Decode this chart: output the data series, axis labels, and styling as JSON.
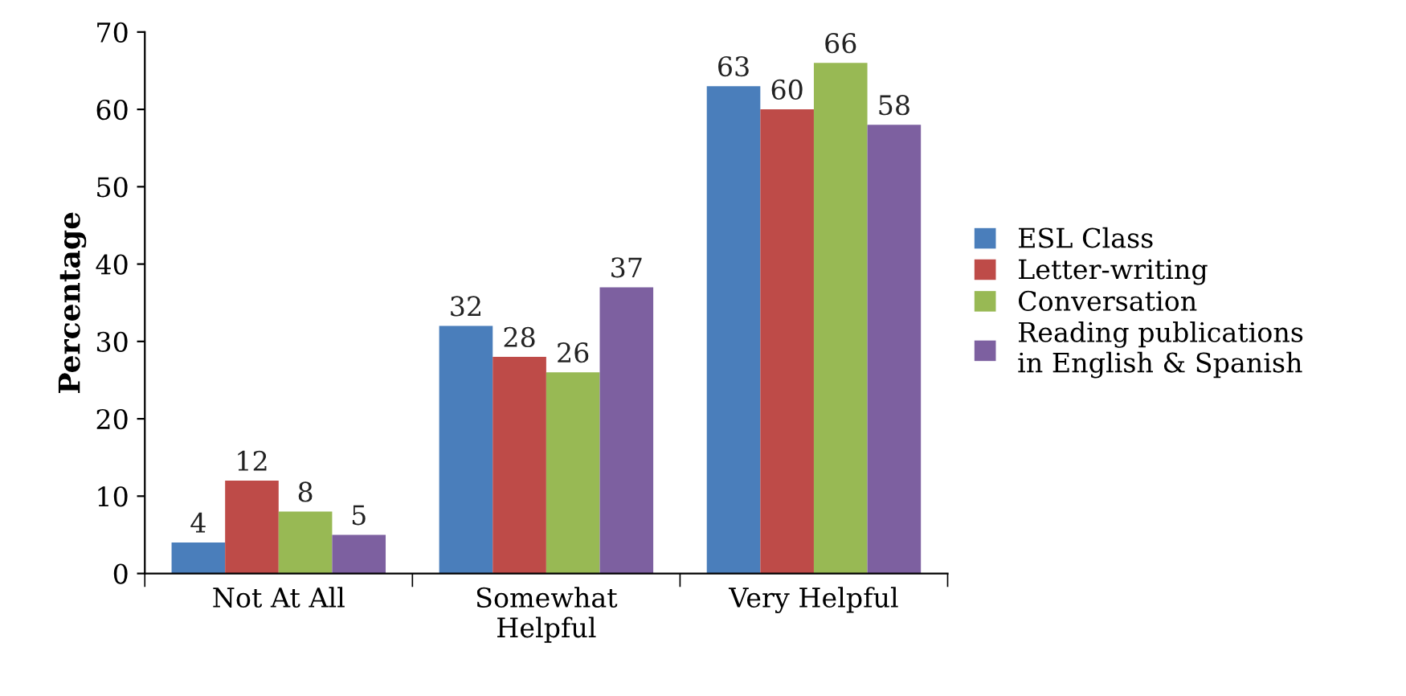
{
  "chart_data": {
    "type": "bar",
    "ylabel": "Percentage",
    "categories": [
      "Not At All",
      "Somewhat\nHelpful",
      "Very Helpful"
    ],
    "series": [
      {
        "name": "ESL Class",
        "color": "#4a7ebb",
        "values": [
          4,
          32,
          63
        ]
      },
      {
        "name": "Letter-writing",
        "color": "#be4b48",
        "values": [
          12,
          28,
          60
        ]
      },
      {
        "name": "Conversation",
        "color": "#98b954",
        "values": [
          8,
          26,
          66
        ]
      },
      {
        "name": "Reading publications\nin English & Spanish",
        "color": "#7d60a0",
        "values": [
          5,
          37,
          58
        ]
      }
    ],
    "ylim": [
      0,
      70
    ],
    "yticks": [
      0,
      10,
      20,
      30,
      40,
      50,
      60,
      70
    ],
    "data_labels": true,
    "grid": false,
    "legend": "right"
  }
}
